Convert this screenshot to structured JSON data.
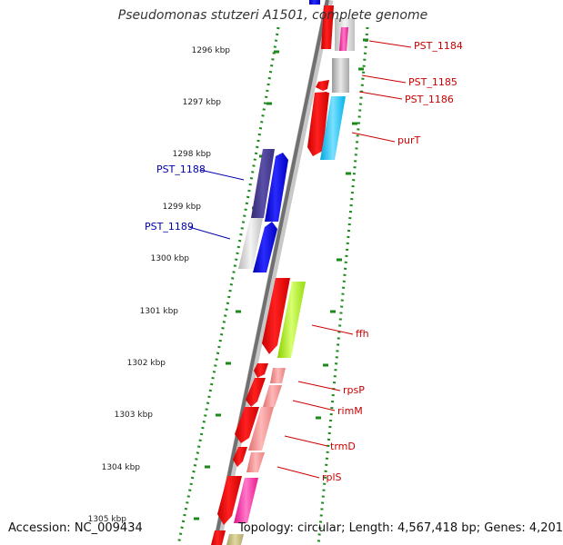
{
  "title": "Pseudomonas stutzeri A1501, complete genome",
  "footer": {
    "accession": "Accession: NC_009434",
    "topology": "Topology: circular; Length: 4,567,418 bp; Genes: 4,201"
  },
  "colors": {
    "backbone": "#808080",
    "tick_green": "#1a8a1a",
    "forward_gene": "#ff0000",
    "label_red": "#cc0000",
    "label_blue": "#0000aa",
    "reverse_gene_blue": "#0000ff",
    "reverse_gene_navy": "#4a3f8f"
  },
  "scale": [
    {
      "label": "1296 kbp"
    },
    {
      "label": "1297 kbp"
    },
    {
      "label": "1298 kbp"
    },
    {
      "label": "1299 kbp"
    },
    {
      "label": "1300 kbp"
    },
    {
      "label": "1301 kbp"
    },
    {
      "label": "1302 kbp"
    },
    {
      "label": "1303 kbp"
    },
    {
      "label": "1304 kbp"
    },
    {
      "label": "1305 kbp"
    }
  ],
  "gene_labels": [
    {
      "text": "PST_1184",
      "color": "#cc0000"
    },
    {
      "text": "PST_1185",
      "color": "#cc0000"
    },
    {
      "text": "PST_1186",
      "color": "#cc0000"
    },
    {
      "text": "purT",
      "color": "#cc0000"
    },
    {
      "text": "PST_1188",
      "color": "#0000aa"
    },
    {
      "text": "PST_1189",
      "color": "#0000aa"
    },
    {
      "text": "ffh",
      "color": "#cc0000"
    },
    {
      "text": "rpsP",
      "color": "#cc0000"
    },
    {
      "text": "rimM",
      "color": "#cc0000"
    },
    {
      "text": "trmD",
      "color": "#cc0000"
    },
    {
      "text": "rplS",
      "color": "#cc0000"
    }
  ]
}
